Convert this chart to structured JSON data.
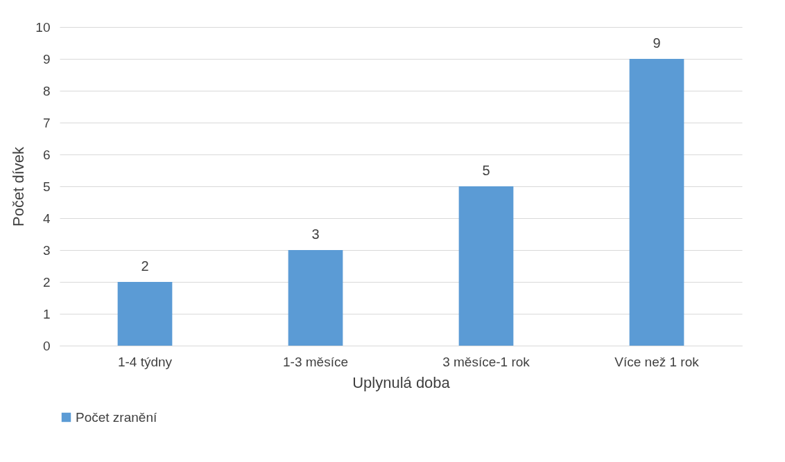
{
  "chart_data": {
    "type": "bar",
    "xlabel": "Uplynulá doba",
    "ylabel": "Počet dívek",
    "categories": [
      "1-4 týdny",
      "1-3 měsíce",
      "3 měsíce-1 rok",
      "Více než 1 rok"
    ],
    "series": [
      {
        "name": "Počet zranění",
        "color": "#5b9bd5",
        "values": [
          2,
          3,
          5,
          9
        ]
      }
    ],
    "ylim": [
      0,
      10
    ],
    "yticks": [
      0,
      1,
      2,
      3,
      4,
      5,
      6,
      7,
      8,
      9,
      10
    ],
    "grid": "y",
    "legend": "bottom",
    "data_labels": true
  }
}
